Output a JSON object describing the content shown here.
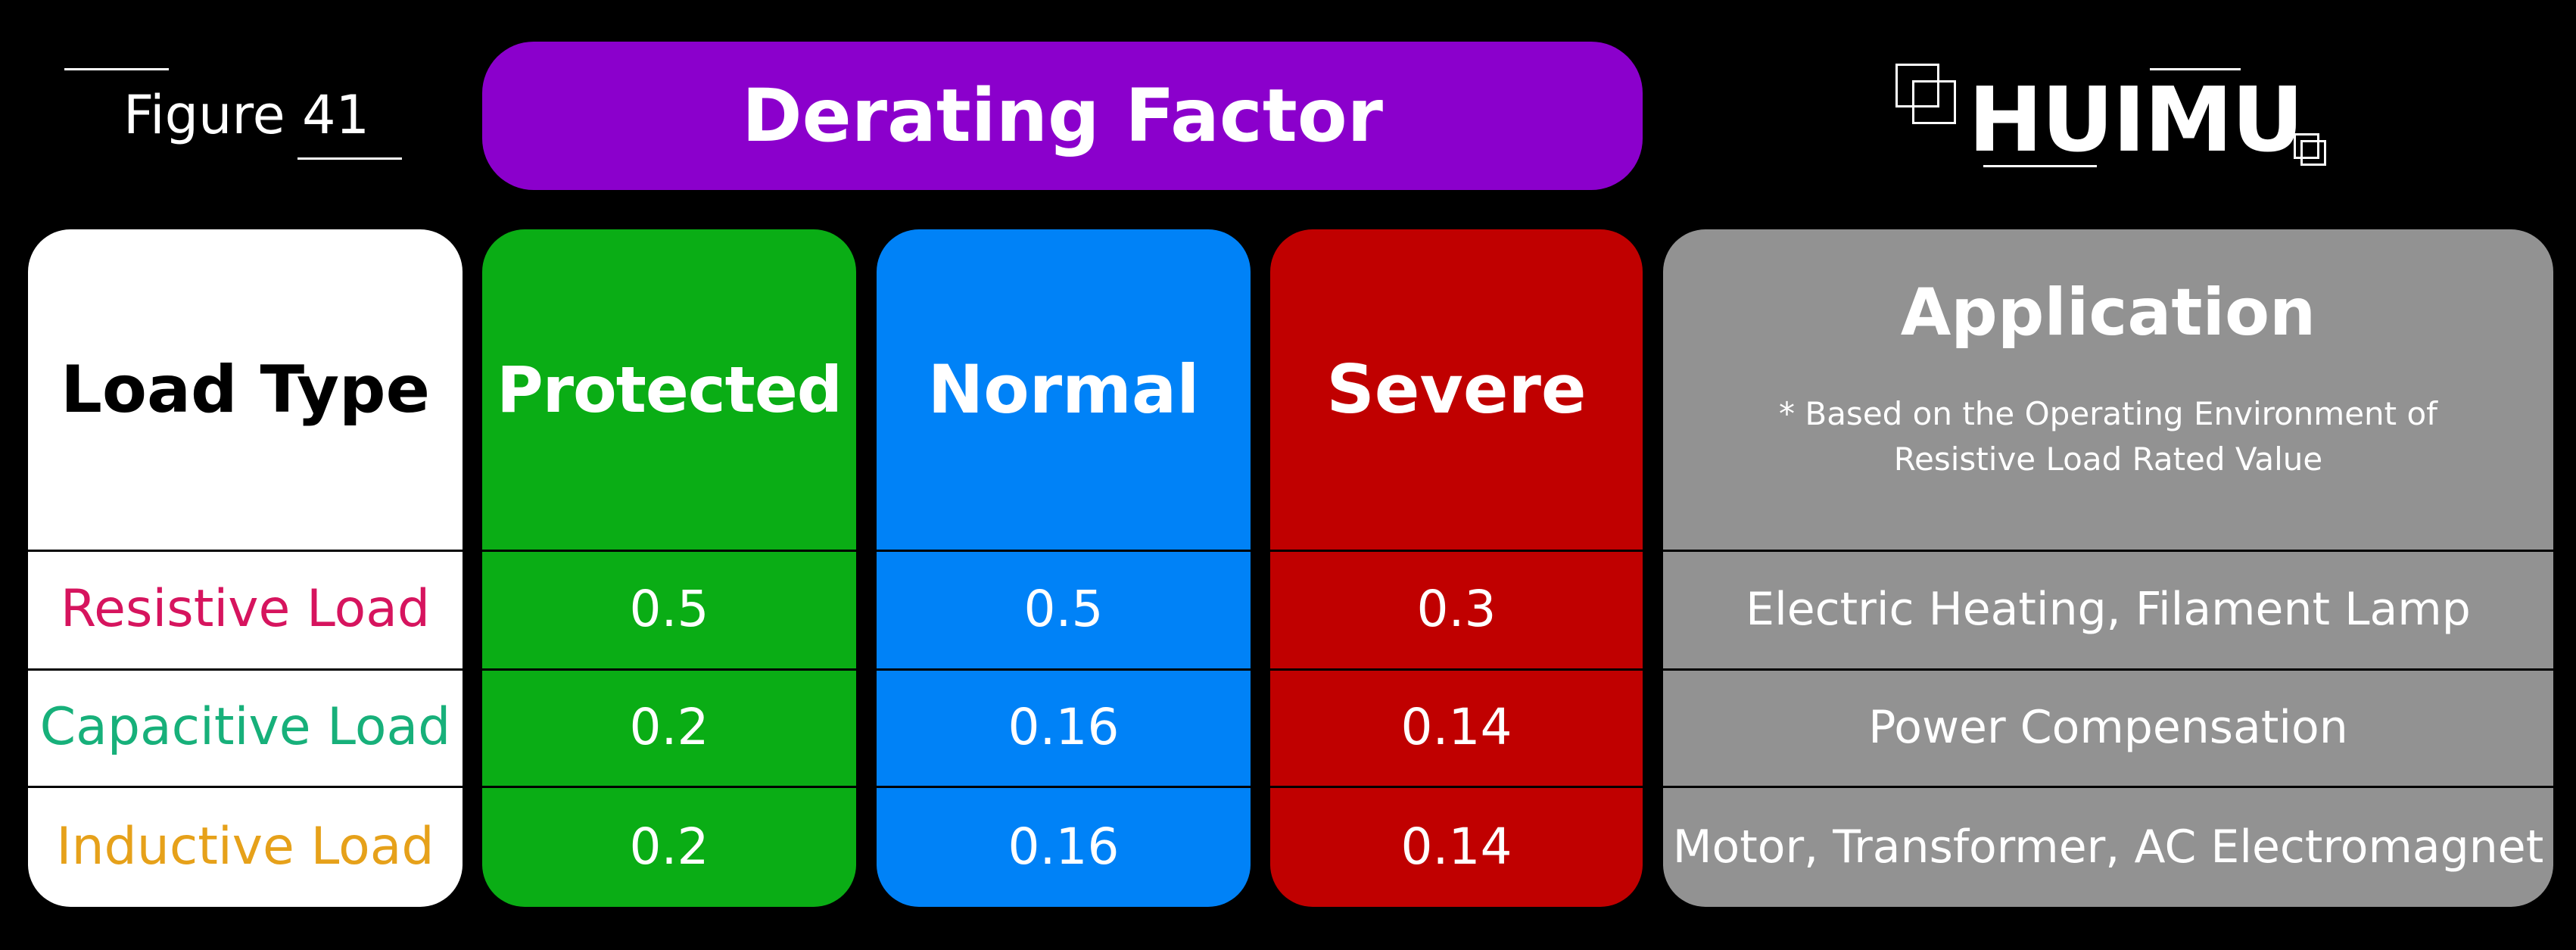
{
  "header": {
    "figure_label": "Figure 41",
    "title": "Derating Factor",
    "logo_text": "HUIMU"
  },
  "colors": {
    "background": "#000000",
    "title_pill": "#8b00cc",
    "load_type_column": "#ffffff",
    "protected_column": "#0aad15",
    "normal_column": "#0082f7",
    "severe_column": "#c00000",
    "application_column": "#929292",
    "resistive_load_text": "#d6145e",
    "capacitive_load_text": "#17b07a",
    "inductive_load_text": "#e6a11a"
  },
  "table": {
    "headers": {
      "load_type": "Load Type",
      "protected": "Protected",
      "normal": "Normal",
      "severe": "Severe",
      "application": "Application",
      "application_note_line1": "* Based on the Operating Environment of",
      "application_note_line2": "Resistive Load Rated Value"
    },
    "rows": [
      {
        "load_type": "Resistive Load",
        "protected": "0.5",
        "normal": "0.5",
        "severe": "0.3",
        "application": "Electric Heating, Filament Lamp"
      },
      {
        "load_type": "Capacitive Load",
        "protected": "0.2",
        "normal": "0.16",
        "severe": "0.14",
        "application": "Power Compensation"
      },
      {
        "load_type": "Inductive Load",
        "protected": "0.2",
        "normal": "0.16",
        "severe": "0.14",
        "application": "Motor, Transformer, AC Electromagnet"
      }
    ]
  }
}
